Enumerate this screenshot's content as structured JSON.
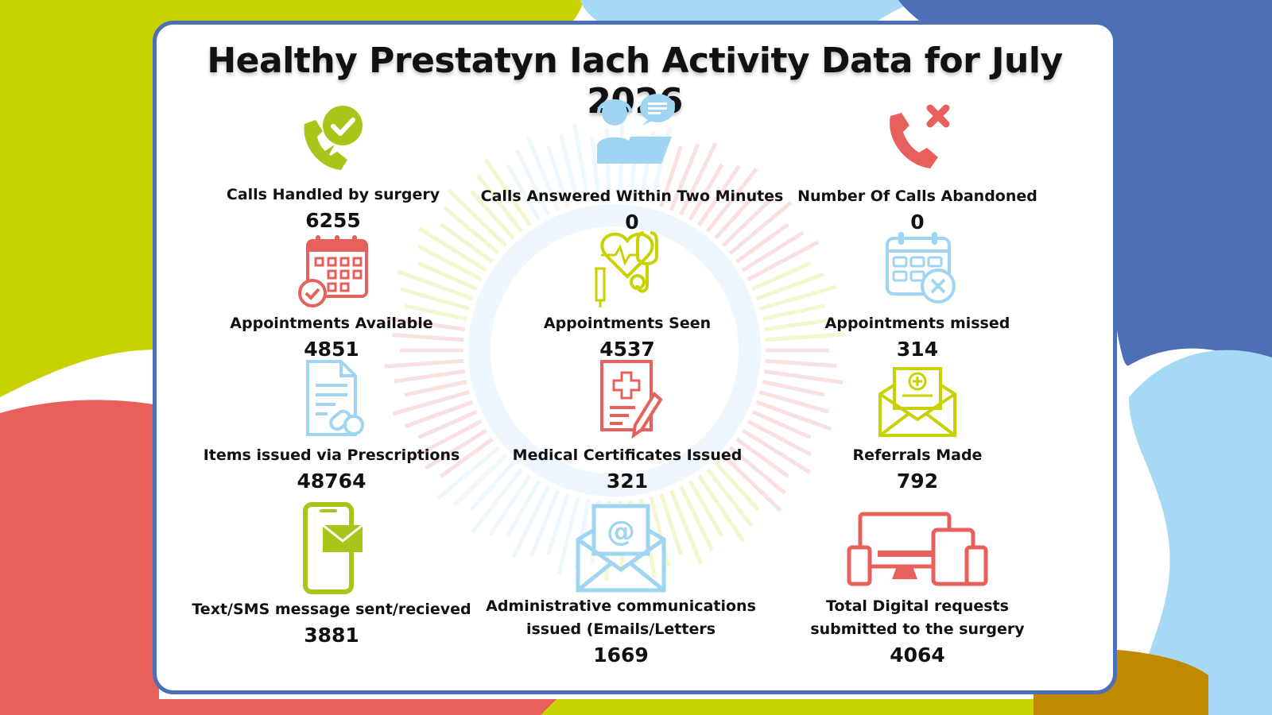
{
  "title": "Healthy Prestatyn Iach Activity Data for July 2026",
  "colors": {
    "green": "#a8c61a",
    "blue_light": "#9fd4f2",
    "red": "#e8605c",
    "blue_dark": "#4d6fb6",
    "yellow_green": "#c8d200",
    "gold": "#c08a00"
  },
  "stats": [
    {
      "label": "Calls Handled by surgery",
      "value": "6255",
      "icon": "phone-check-icon"
    },
    {
      "label": "Calls Answered Within Two Minutes",
      "value": "0",
      "icon": "call-centre-agent-icon"
    },
    {
      "label": "Number Of Calls Abandoned",
      "value": "0",
      "icon": "phone-cross-icon"
    },
    {
      "label": "Appointments Available",
      "value": "4851",
      "icon": "calendar-check-icon"
    },
    {
      "label": "Appointments Seen",
      "value": "4537",
      "icon": "stethoscope-heart-icon"
    },
    {
      "label": "Appointments missed",
      "value": "314",
      "icon": "calendar-cross-icon"
    },
    {
      "label": "Items issued via Prescriptions",
      "value": "48764",
      "icon": "prescription-pills-icon"
    },
    {
      "label": "Medical Certificates Issued",
      "value": "321",
      "icon": "medical-certificate-icon"
    },
    {
      "label": "Referrals Made",
      "value": "792",
      "icon": "referral-envelope-icon"
    },
    {
      "label": "Text/SMS message sent/recieved",
      "value": "3881",
      "icon": "mobile-message-icon"
    },
    {
      "label_line1": "Administrative communications",
      "label_line2": "issued (Emails/Letters",
      "value": "1669",
      "icon": "email-at-icon"
    },
    {
      "label_line1": "Total Digital requests",
      "label_line2": "submitted to the surgery",
      "value": "4064",
      "icon": "devices-icon"
    }
  ]
}
